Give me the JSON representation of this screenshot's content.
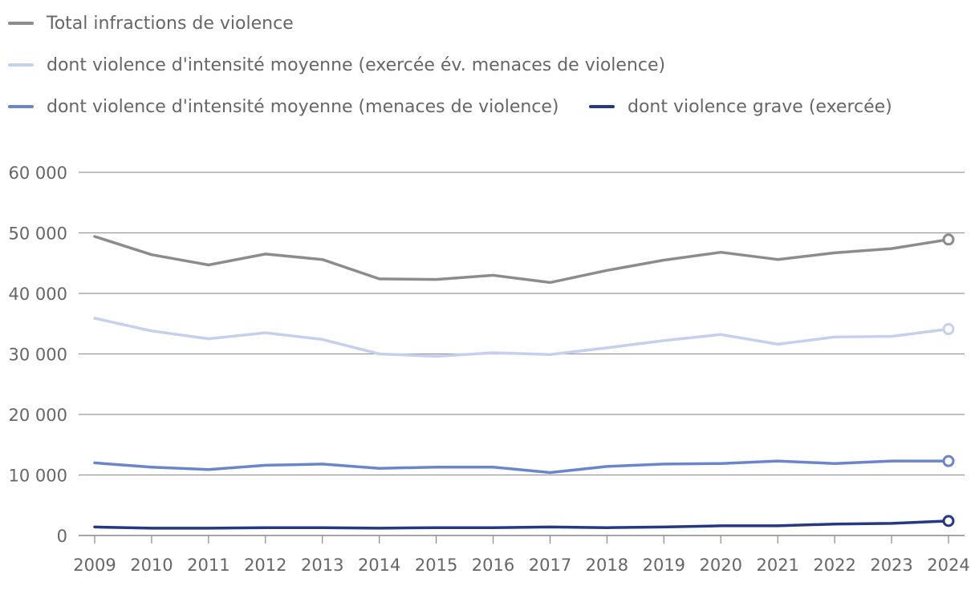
{
  "chart_data": {
    "type": "line",
    "title": "",
    "xlabel": "",
    "ylabel": "",
    "categories": [
      "2009",
      "2010",
      "2011",
      "2012",
      "2013",
      "2014",
      "2015",
      "2016",
      "2017",
      "2018",
      "2019",
      "2020",
      "2021",
      "2022",
      "2023",
      "2024"
    ],
    "ylim": [
      0,
      60000
    ],
    "yticks": [
      0,
      10000,
      20000,
      30000,
      40000,
      50000,
      60000
    ],
    "ytick_labels": [
      "0",
      "10 000",
      "20 000",
      "30 000",
      "40 000",
      "50 000",
      "60 000"
    ],
    "grid": true,
    "legend_position": "top-left",
    "series": [
      {
        "name": "Total infractions de violence",
        "color": "#8c8c8c",
        "values": [
          49400,
          46400,
          44700,
          46500,
          45600,
          42400,
          42300,
          43000,
          41800,
          43800,
          45500,
          46800,
          45600,
          46700,
          47400,
          48900
        ]
      },
      {
        "name": "dont violence d'intensité moyenne (exercée év. menaces de violence)",
        "color": "#c5d0ee",
        "values": [
          35900,
          33800,
          32500,
          33500,
          32400,
          30000,
          29600,
          30200,
          29900,
          31000,
          32200,
          33200,
          31600,
          32800,
          32900,
          34100
        ]
      },
      {
        "name": "dont violence d'intensité moyenne (menaces de violence)",
        "color": "#6b85cc",
        "values": [
          12000,
          11300,
          10900,
          11600,
          11800,
          11100,
          11300,
          11300,
          10400,
          11400,
          11800,
          11900,
          12300,
          11900,
          12300,
          12300
        ]
      },
      {
        "name": "dont violence grave (exercée)",
        "color": "#243982",
        "values": [
          1400,
          1200,
          1200,
          1300,
          1300,
          1200,
          1300,
          1300,
          1400,
          1300,
          1400,
          1600,
          1600,
          1900,
          2000,
          2400
        ]
      }
    ]
  }
}
